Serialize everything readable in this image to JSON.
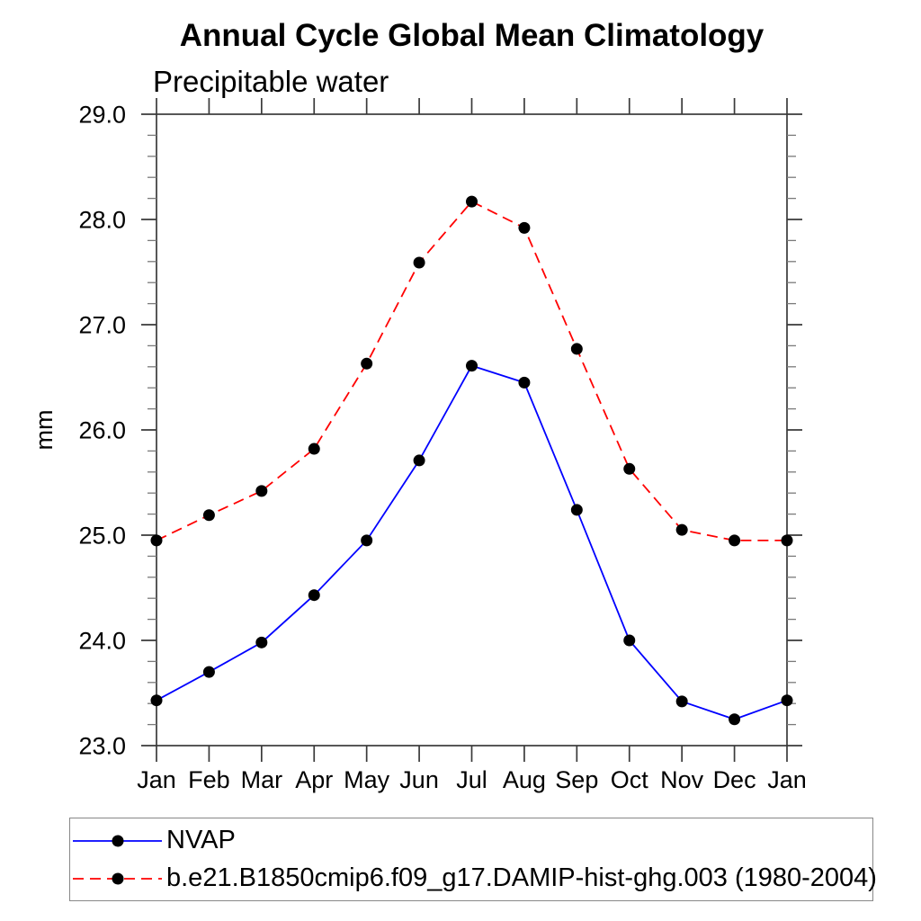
{
  "page": {
    "background": "#ffffff"
  },
  "header": {
    "title": "Annual Cycle Global Mean Climatology",
    "subtitle": "Precipitable water"
  },
  "chart_data": {
    "type": "line",
    "title": "Annual Cycle Global Mean Climatology",
    "subtitle": "Precipitable water",
    "xlabel": "",
    "ylabel": "mm",
    "categories": [
      "Jan",
      "Feb",
      "Mar",
      "Apr",
      "May",
      "Jun",
      "Jul",
      "Aug",
      "Sep",
      "Oct",
      "Nov",
      "Dec",
      "Jan"
    ],
    "ylim": [
      23.0,
      29.0
    ],
    "y_major_step": 1.0,
    "y_minor_step": 0.2,
    "y_tick_labels": [
      "23.0",
      "24.0",
      "25.0",
      "26.0",
      "27.0",
      "28.0",
      "29.0"
    ],
    "grid": false,
    "legend_position": "bottom-left-box",
    "series": [
      {
        "name": "NVAP",
        "color": "#0000ff",
        "style": "solid",
        "marker": "circle",
        "marker_color": "#000000",
        "values": [
          23.43,
          23.7,
          23.98,
          24.43,
          24.95,
          25.71,
          26.61,
          26.45,
          25.24,
          24.0,
          23.42,
          23.25,
          23.43
        ]
      },
      {
        "name": "b.e21.B1850cmip6.f09_g17.DAMIP-hist-ghg.003 (1980-2004)",
        "color": "#ff0000",
        "style": "dashed",
        "marker": "circle",
        "marker_color": "#000000",
        "values": [
          24.95,
          25.19,
          25.42,
          25.82,
          26.63,
          27.59,
          28.17,
          27.92,
          26.77,
          25.63,
          25.05,
          24.95,
          24.95
        ]
      }
    ]
  },
  "colors": {
    "frame": "#3a3a3a",
    "minor_tick": "#7a7a7a",
    "text": "#000000",
    "legend_border": "#888888"
  }
}
